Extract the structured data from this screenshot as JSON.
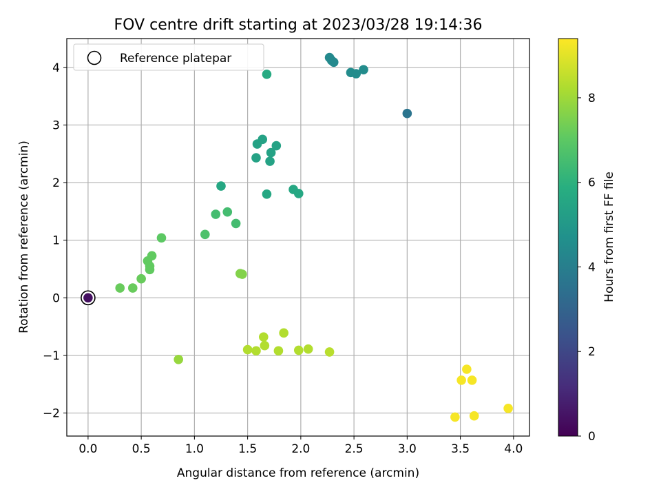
{
  "chart_data": {
    "type": "scatter",
    "title": "FOV centre drift starting at 2023/03/28 19:14:36",
    "xlabel": "Angular distance from reference (arcmin)",
    "ylabel": "Rotation from reference (arcmin)",
    "xlim": [
      -0.2,
      4.15
    ],
    "ylim": [
      -2.4,
      4.5
    ],
    "xticks": [
      0.0,
      0.5,
      1.0,
      1.5,
      2.0,
      2.5,
      3.0,
      3.5,
      4.0
    ],
    "xtick_labels": [
      "0.0",
      "0.5",
      "1.0",
      "1.5",
      "2.0",
      "2.5",
      "3.0",
      "3.5",
      "4.0"
    ],
    "yticks": [
      -2,
      -1,
      0,
      1,
      2,
      3,
      4
    ],
    "ytick_labels": [
      "−2",
      "−1",
      "0",
      "1",
      "2",
      "3",
      "4"
    ],
    "grid": true,
    "legend": {
      "position": "upper-left",
      "label": "Reference platepar"
    },
    "colorbar": {
      "label": "Hours from first FF file",
      "colormap": "viridis",
      "range": [
        0,
        9.4
      ],
      "ticks": [
        0,
        2,
        4,
        6,
        8
      ],
      "tick_labels": [
        "0",
        "2",
        "4",
        "6",
        "8"
      ]
    },
    "reference_point": {
      "x": 0.0,
      "y": 0.0
    },
    "points": [
      {
        "x": 0.0,
        "y": 0.0,
        "hours": 0.4
      },
      {
        "x": 3.0,
        "y": 3.2,
        "hours": 3.6
      },
      {
        "x": 2.27,
        "y": 4.17,
        "hours": 4.4
      },
      {
        "x": 2.29,
        "y": 4.12,
        "hours": 4.4
      },
      {
        "x": 2.31,
        "y": 4.09,
        "hours": 4.4
      },
      {
        "x": 2.47,
        "y": 3.91,
        "hours": 4.5
      },
      {
        "x": 2.52,
        "y": 3.89,
        "hours": 4.5
      },
      {
        "x": 2.59,
        "y": 3.96,
        "hours": 4.5
      },
      {
        "x": 1.59,
        "y": 2.67,
        "hours": 5.4
      },
      {
        "x": 1.64,
        "y": 2.75,
        "hours": 5.4
      },
      {
        "x": 1.77,
        "y": 2.64,
        "hours": 5.4
      },
      {
        "x": 1.72,
        "y": 2.52,
        "hours": 5.4
      },
      {
        "x": 1.58,
        "y": 2.43,
        "hours": 5.4
      },
      {
        "x": 1.71,
        "y": 2.37,
        "hours": 5.4
      },
      {
        "x": 1.25,
        "y": 1.94,
        "hours": 5.6
      },
      {
        "x": 1.68,
        "y": 1.8,
        "hours": 5.6
      },
      {
        "x": 1.93,
        "y": 1.88,
        "hours": 5.6
      },
      {
        "x": 1.98,
        "y": 1.81,
        "hours": 5.6
      },
      {
        "x": 1.68,
        "y": 3.88,
        "hours": 5.7
      },
      {
        "x": 1.2,
        "y": 1.45,
        "hours": 6.5
      },
      {
        "x": 1.31,
        "y": 1.49,
        "hours": 6.5
      },
      {
        "x": 1.39,
        "y": 1.29,
        "hours": 6.5
      },
      {
        "x": 1.1,
        "y": 1.1,
        "hours": 6.7
      },
      {
        "x": 0.69,
        "y": 1.04,
        "hours": 7.0
      },
      {
        "x": 0.6,
        "y": 0.73,
        "hours": 7.1
      },
      {
        "x": 0.56,
        "y": 0.64,
        "hours": 7.1
      },
      {
        "x": 0.58,
        "y": 0.55,
        "hours": 7.1
      },
      {
        "x": 0.58,
        "y": 0.49,
        "hours": 7.1
      },
      {
        "x": 0.5,
        "y": 0.33,
        "hours": 7.2
      },
      {
        "x": 0.3,
        "y": 0.17,
        "hours": 7.2
      },
      {
        "x": 0.42,
        "y": 0.17,
        "hours": 7.2
      },
      {
        "x": 1.43,
        "y": 0.42,
        "hours": 7.6
      },
      {
        "x": 1.45,
        "y": 0.41,
        "hours": 7.6
      },
      {
        "x": 0.85,
        "y": -1.07,
        "hours": 7.9
      },
      {
        "x": 1.5,
        "y": -0.9,
        "hours": 8.3
      },
      {
        "x": 1.58,
        "y": -0.92,
        "hours": 8.3
      },
      {
        "x": 1.65,
        "y": -0.68,
        "hours": 8.3
      },
      {
        "x": 1.66,
        "y": -0.83,
        "hours": 8.3
      },
      {
        "x": 1.79,
        "y": -0.92,
        "hours": 8.3
      },
      {
        "x": 1.84,
        "y": -0.61,
        "hours": 8.3
      },
      {
        "x": 1.98,
        "y": -0.91,
        "hours": 8.3
      },
      {
        "x": 2.07,
        "y": -0.89,
        "hours": 8.3
      },
      {
        "x": 2.27,
        "y": -0.94,
        "hours": 8.4
      },
      {
        "x": 3.45,
        "y": -2.07,
        "hours": 9.3
      },
      {
        "x": 3.51,
        "y": -1.43,
        "hours": 9.3
      },
      {
        "x": 3.56,
        "y": -1.24,
        "hours": 9.3
      },
      {
        "x": 3.61,
        "y": -1.43,
        "hours": 9.3
      },
      {
        "x": 3.63,
        "y": -2.05,
        "hours": 9.3
      },
      {
        "x": 3.95,
        "y": -1.92,
        "hours": 9.3
      }
    ]
  }
}
